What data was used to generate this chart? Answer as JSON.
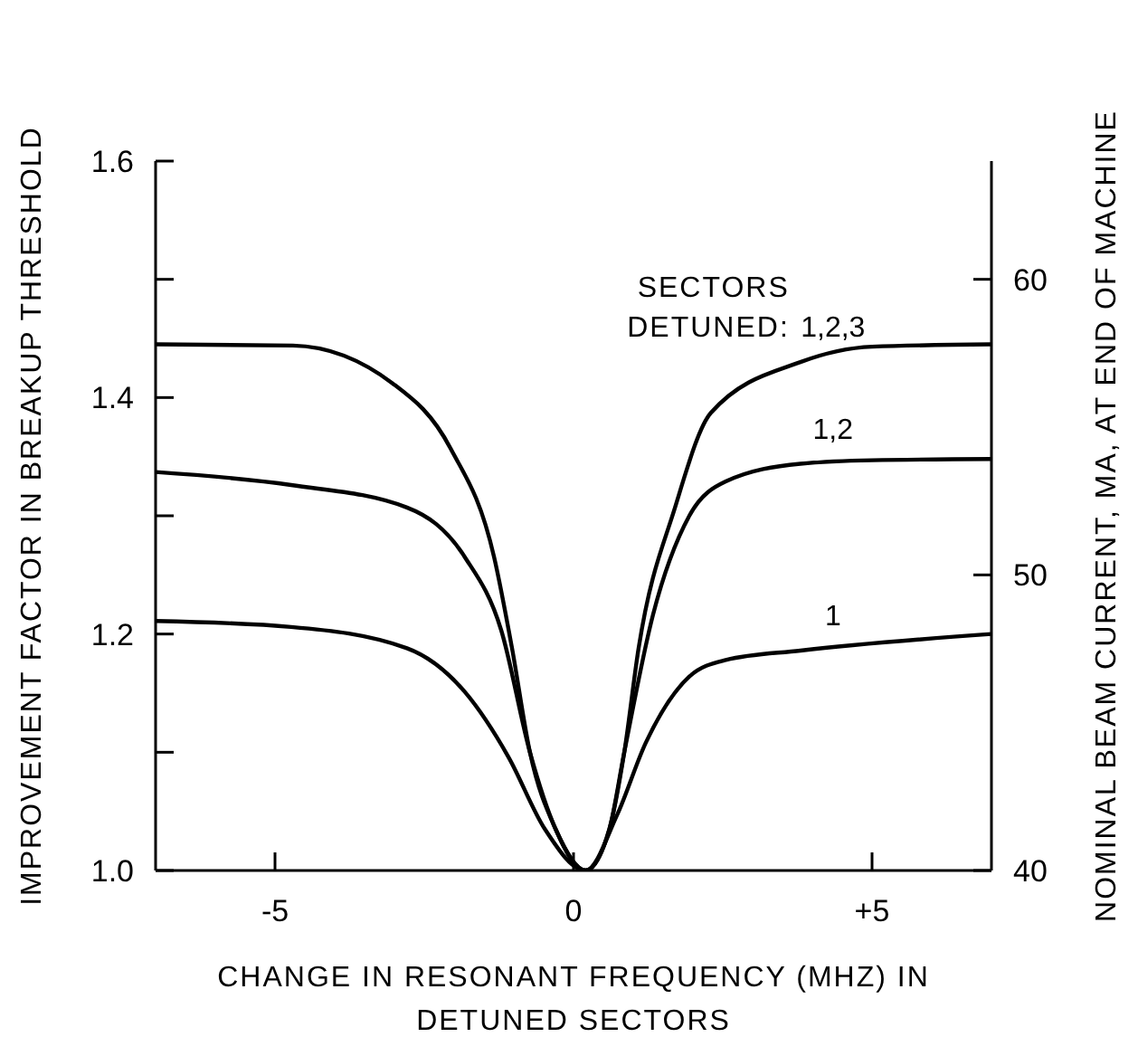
{
  "chart_data": {
    "type": "line",
    "xlabel": "CHANGE IN RESONANT FREQUENCY (MHZ) IN DETUNED SECTORS",
    "ylabel": "IMPROVEMENT FACTOR IN BREAKUP THRESHOLD",
    "y2label": "NOMINAL BEAM CURRENT, MA, AT END OF MACHINE",
    "xlim": [
      -7,
      7
    ],
    "xticks": [
      -5,
      0,
      {
        "value": 5,
        "label": "+5"
      }
    ],
    "ylim": [
      1.0,
      1.6
    ],
    "yticks": [
      {
        "value": 1.0,
        "label": "1.0"
      },
      {
        "value": 1.1,
        "label": null
      },
      {
        "value": 1.2,
        "label": "1.2"
      },
      {
        "value": 1.3,
        "label": null
      },
      {
        "value": 1.4,
        "label": "1.4"
      },
      {
        "value": 1.5,
        "label": null
      },
      {
        "value": 1.6,
        "label": "1.6"
      }
    ],
    "y2lim": [
      40,
      64
    ],
    "y2ticks": [
      40,
      50,
      60
    ],
    "marker": "none",
    "line_style": "solid",
    "annotations": [
      "SECTORS DETUNED:"
    ],
    "series": [
      {
        "name": "1,2,3",
        "color": "#000000",
        "x": [
          -7,
          -4.7,
          -3.03,
          -2.06,
          -1.33,
          -1.03,
          -0.73,
          -0.3,
          0.2,
          0.6,
          0.85,
          1.09,
          1.7,
          2.3,
          3.8,
          5,
          7
        ],
        "values": [
          1.445,
          1.444,
          1.412,
          1.357,
          1.265,
          1.188,
          1.1,
          1.035,
          1.0,
          1.035,
          1.1,
          1.188,
          1.307,
          1.387,
          1.43,
          1.443,
          1.445
        ]
      },
      {
        "name": "1,2",
        "color": "#000000",
        "x": [
          -7,
          -4.73,
          -2.79,
          -1.82,
          -1.21,
          -0.73,
          -0.3,
          0.2,
          0.6,
          0.85,
          1.33,
          1.94,
          2.55,
          3.8,
          5,
          7
        ],
        "values": [
          1.337,
          1.326,
          1.307,
          1.265,
          1.203,
          1.1,
          1.035,
          1.0,
          1.035,
          1.1,
          1.216,
          1.3,
          1.329,
          1.344,
          1.347,
          1.348
        ]
      },
      {
        "name": "1",
        "color": "#000000",
        "x": [
          -7,
          -4.73,
          -2.79,
          -1.82,
          -1.09,
          -0.48,
          0.2,
          0.73,
          1.21,
          1.94,
          2.55,
          3.8,
          7
        ],
        "values": [
          1.211,
          1.206,
          1.188,
          1.151,
          1.096,
          1.035,
          1.0,
          1.047,
          1.108,
          1.164,
          1.178,
          1.186,
          1.2
        ]
      }
    ]
  }
}
